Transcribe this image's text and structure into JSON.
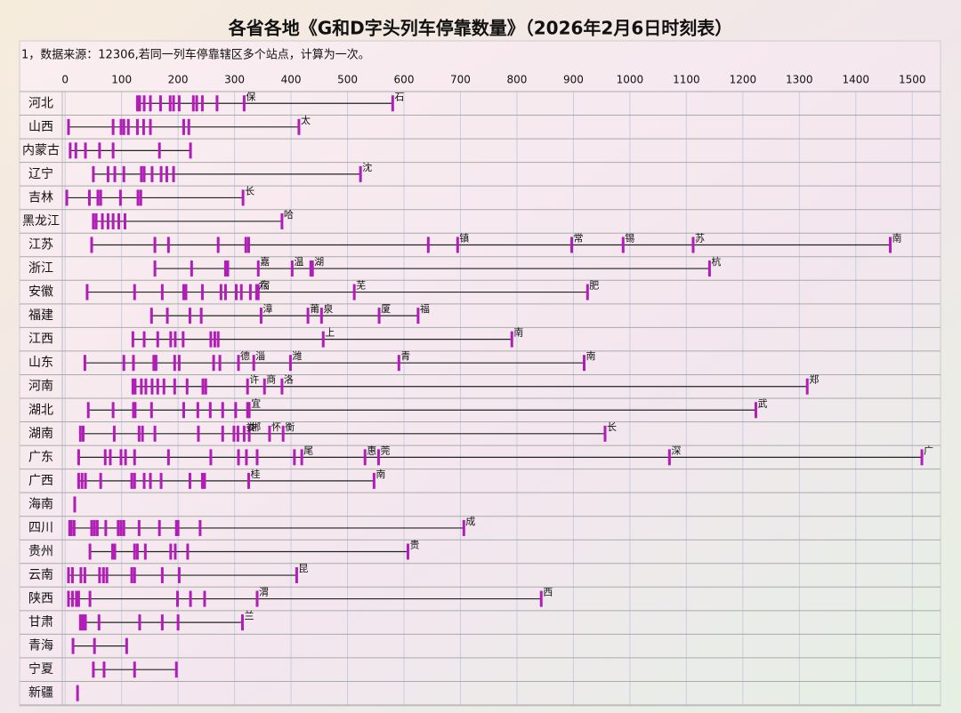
{
  "chart_data": {
    "type": "strip",
    "title": "各省各地《G和D字头列车停靠数量》（2026年2月6日时刻表）",
    "subtitle": "1，数据来源：12306,若同一列车停靠辖区多个站点，计算为一次。",
    "color": "#b21db8",
    "line_color": "#222222",
    "grid": true,
    "xlim": [
      -5,
      1550
    ],
    "xticks": [
      0,
      100,
      200,
      300,
      400,
      500,
      600,
      700,
      800,
      900,
      1000,
      1100,
      1200,
      1300,
      1400,
      1500
    ],
    "series": [
      {
        "name": "河北",
        "values": [
          128,
          132,
          140,
          151,
          169,
          186,
          192,
          202,
          227,
          233,
          243,
          269,
          317,
          580
        ],
        "annotations": [
          {
            "label": "保",
            "value": 317
          },
          {
            "label": "石",
            "value": 580
          }
        ]
      },
      {
        "name": "山西",
        "values": [
          6,
          85,
          99,
          104,
          112,
          128,
          139,
          151,
          210,
          219,
          414
        ],
        "annotations": [
          {
            "label": "太",
            "value": 414
          }
        ]
      },
      {
        "name": "内蒙古",
        "values": [
          9,
          19,
          36,
          61,
          85,
          167,
          222
        ],
        "annotations": []
      },
      {
        "name": "辽宁",
        "values": [
          50,
          76,
          88,
          104,
          135,
          140,
          154,
          170,
          180,
          192,
          523
        ],
        "annotations": [
          {
            "label": "沈",
            "value": 523
          }
        ]
      },
      {
        "name": "吉林",
        "values": [
          3,
          43,
          58,
          63,
          98,
          129,
          134,
          315
        ],
        "annotations": [
          {
            "label": "长",
            "value": 315
          }
        ]
      },
      {
        "name": "黑龙江",
        "values": [
          50,
          55,
          66,
          76,
          85,
          95,
          106,
          384
        ],
        "annotations": [
          {
            "label": "哈",
            "value": 384
          }
        ]
      },
      {
        "name": "江苏",
        "values": [
          47,
          159,
          183,
          271,
          320,
          325,
          643,
          695,
          897,
          988,
          1112,
          1461
        ],
        "annotations": [
          {
            "label": "镇",
            "value": 695
          },
          {
            "label": "常",
            "value": 897
          },
          {
            "label": "锡",
            "value": 988
          },
          {
            "label": "苏",
            "value": 1112
          },
          {
            "label": "南",
            "value": 1461
          }
        ]
      },
      {
        "name": "浙江",
        "values": [
          159,
          224,
          284,
          288,
          342,
          402,
          435,
          438,
          1141
        ],
        "annotations": [
          {
            "label": "嘉",
            "value": 342
          },
          {
            "label": "温",
            "value": 402
          },
          {
            "label": "湖",
            "value": 438
          },
          {
            "label": "杭",
            "value": 1141
          }
        ]
      },
      {
        "name": "安徽",
        "values": [
          39,
          123,
          172,
          210,
          214,
          243,
          276,
          284,
          303,
          312,
          328,
          339,
          342,
          512,
          925
        ],
        "annotations": [
          {
            "label": "六",
            "value": 339
          },
          {
            "label": "宿",
            "value": 342
          },
          {
            "label": "芜",
            "value": 512
          },
          {
            "label": "肥",
            "value": 925
          }
        ]
      },
      {
        "name": "福建",
        "values": [
          153,
          181,
          221,
          241,
          347,
          430,
          454,
          556,
          625
        ],
        "annotations": [
          {
            "label": "漳",
            "value": 347
          },
          {
            "label": "莆",
            "value": 430
          },
          {
            "label": "泉",
            "value": 454
          },
          {
            "label": "厦",
            "value": 556
          },
          {
            "label": "福",
            "value": 625
          }
        ]
      },
      {
        "name": "江西",
        "values": [
          120,
          140,
          164,
          187,
          195,
          209,
          258,
          265,
          271,
          457,
          791
        ],
        "annotations": [
          {
            "label": "上",
            "value": 457
          },
          {
            "label": "南",
            "value": 791
          }
        ]
      },
      {
        "name": "山东",
        "values": [
          35,
          104,
          121,
          157,
          161,
          194,
          202,
          263,
          274,
          307,
          334,
          399,
          591,
          919
        ],
        "annotations": [
          {
            "label": "德",
            "value": 307
          },
          {
            "label": "淄",
            "value": 334
          },
          {
            "label": "潍",
            "value": 399
          },
          {
            "label": "青",
            "value": 591
          },
          {
            "label": "南",
            "value": 919
          }
        ]
      },
      {
        "name": "河南",
        "values": [
          120,
          124,
          135,
          143,
          154,
          164,
          175,
          194,
          216,
          244,
          249,
          323,
          353,
          384,
          1314
        ],
        "annotations": [
          {
            "label": "许",
            "value": 323
          },
          {
            "label": "商",
            "value": 353
          },
          {
            "label": "洛",
            "value": 384
          },
          {
            "label": "郑",
            "value": 1314
          }
        ]
      },
      {
        "name": "湖北",
        "values": [
          41,
          85,
          121,
          124,
          153,
          210,
          235,
          257,
          279,
          302,
          323,
          326,
          1223
        ],
        "annotations": [
          {
            "label": "宜",
            "value": 326
          },
          {
            "label": "武",
            "value": 1223
          }
        ]
      },
      {
        "name": "湖南",
        "values": [
          27,
          32,
          87,
          131,
          137,
          159,
          236,
          279,
          299,
          306,
          317,
          326,
          362,
          386,
          956
        ],
        "annotations": [
          {
            "label": "娄",
            "value": 317
          },
          {
            "label": "郴",
            "value": 326
          },
          {
            "label": "怀",
            "value": 362
          },
          {
            "label": "衡",
            "value": 386
          },
          {
            "label": "长",
            "value": 956
          }
        ]
      },
      {
        "name": "广东",
        "values": [
          24,
          71,
          80,
          99,
          107,
          123,
          183,
          258,
          307,
          321,
          340,
          406,
          419,
          531,
          555,
          1070,
          1517
        ],
        "annotations": [
          {
            "label": "尾",
            "value": 419
          },
          {
            "label": "惠",
            "value": 531
          },
          {
            "label": "莞",
            "value": 555
          },
          {
            "label": "深",
            "value": 1070
          },
          {
            "label": "广",
            "value": 1517
          }
        ]
      },
      {
        "name": "广西",
        "values": [
          24,
          30,
          36,
          63,
          118,
          123,
          140,
          151,
          170,
          221,
          243,
          247,
          325,
          547
        ],
        "annotations": [
          {
            "label": "桂",
            "value": 325
          },
          {
            "label": "南",
            "value": 547
          }
        ]
      },
      {
        "name": "海南",
        "values": [
          17
        ],
        "annotations": []
      },
      {
        "name": "四川",
        "values": [
          8,
          11,
          16,
          47,
          52,
          57,
          72,
          94,
          99,
          104,
          131,
          167,
          197,
          200,
          239,
          706
        ],
        "annotations": [
          {
            "label": "成",
            "value": 706
          }
        ]
      },
      {
        "name": "贵州",
        "values": [
          44,
          84,
          88,
          123,
          128,
          142,
          187,
          195,
          217,
          607
        ],
        "annotations": [
          {
            "label": "贵",
            "value": 607
          }
        ]
      },
      {
        "name": "云南",
        "values": [
          6,
          13,
          28,
          35,
          61,
          68,
          74,
          118,
          123,
          172,
          202,
          410
        ],
        "annotations": [
          {
            "label": "昆",
            "value": 410
          }
        ]
      },
      {
        "name": "陕西",
        "values": [
          6,
          13,
          20,
          24,
          44,
          199,
          222,
          247,
          340,
          843
        ],
        "annotations": [
          {
            "label": "渭",
            "value": 340
          },
          {
            "label": "西",
            "value": 843
          }
        ]
      },
      {
        "name": "甘肃",
        "values": [
          27,
          30,
          33,
          36,
          60,
          132,
          172,
          200,
          314
        ],
        "annotations": [
          {
            "label": "兰",
            "value": 314
          }
        ]
      },
      {
        "name": "青海",
        "values": [
          14,
          52,
          109
        ],
        "annotations": []
      },
      {
        "name": "宁夏",
        "values": [
          50,
          69,
          123,
          197
        ],
        "annotations": []
      },
      {
        "name": "新疆",
        "values": [
          22
        ],
        "annotations": []
      }
    ]
  }
}
